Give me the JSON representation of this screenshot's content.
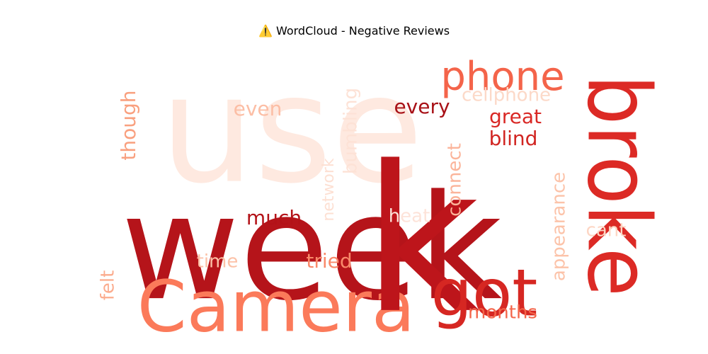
{
  "chart_data": {
    "type": "wordcloud",
    "title": "⚠️ WordCloud - Negative Reviews",
    "words": [
      {
        "text": "use",
        "color": "#fee9e0"
      },
      {
        "text": "week",
        "color": "#b5141a"
      },
      {
        "text": "Camera",
        "color": "#fb7a5a"
      },
      {
        "text": "k",
        "color": "#bd151b"
      },
      {
        "text": "broke",
        "color": "#dc2a25"
      },
      {
        "text": "phone",
        "color": "#f4644a"
      },
      {
        "text": "got",
        "color": "#d62722"
      },
      {
        "text": "cellphone",
        "color": "#fcd9c8"
      },
      {
        "text": "every",
        "color": "#a81117"
      },
      {
        "text": "even",
        "color": "#fcbea5"
      },
      {
        "text": "bumbling",
        "color": "#fde2d6"
      },
      {
        "text": "though",
        "color": "#f9a07f"
      },
      {
        "text": "great",
        "color": "#d92825"
      },
      {
        "text": "blind",
        "color": "#d12521"
      },
      {
        "text": "network",
        "color": "#fde0d3"
      },
      {
        "text": "connect",
        "color": "#fbb49a"
      },
      {
        "text": "appearance",
        "color": "#fcc3a9"
      },
      {
        "text": "heat",
        "color": "#fde3d9"
      },
      {
        "text": "much",
        "color": "#b31218"
      },
      {
        "text": "cant",
        "color": "#fdd6c4"
      },
      {
        "text": "time",
        "color": "#fcc1a7"
      },
      {
        "text": "tried",
        "color": "#f9896a"
      },
      {
        "text": "felt",
        "color": "#fbac8e"
      },
      {
        "text": "months",
        "color": "#f4654a"
      }
    ]
  }
}
